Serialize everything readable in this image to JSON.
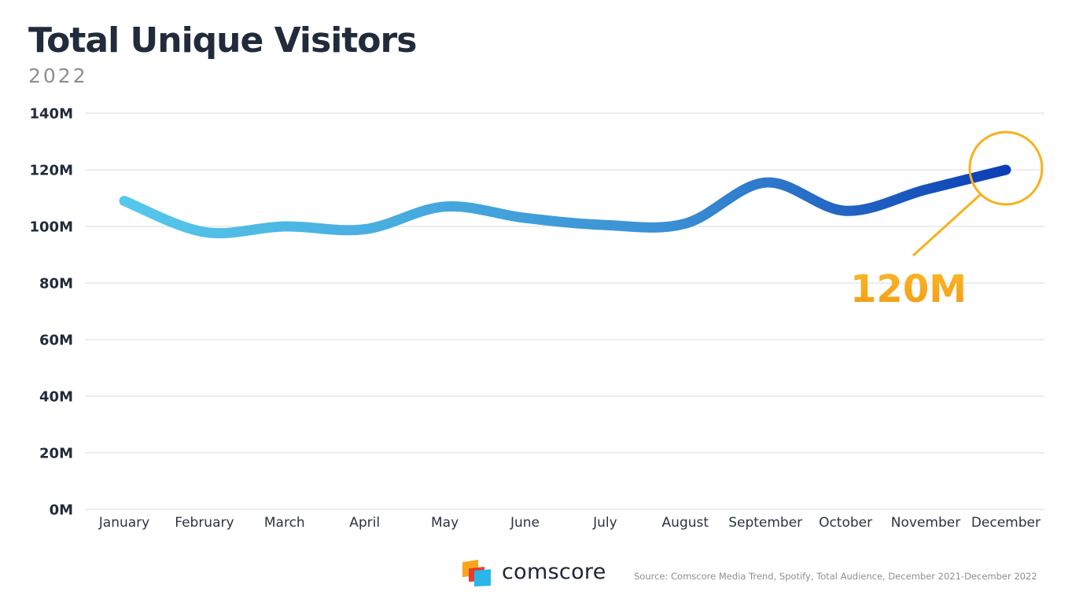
{
  "header": {
    "title": "Total Unique Visitors",
    "subtitle": "2022"
  },
  "chart_data": {
    "type": "line",
    "title": "Total Unique Visitors",
    "subtitle": "2022",
    "categories": [
      "January",
      "February",
      "March",
      "April",
      "May",
      "June",
      "July",
      "August",
      "September",
      "October",
      "November",
      "December"
    ],
    "series": [
      {
        "values": [
          109,
          98,
          100,
          99,
          107,
          103,
          100.5,
          101,
          115.5,
          105.5,
          113,
          120
        ]
      }
    ],
    "ylim": [
      0,
      140
    ],
    "yticks": [
      0,
      20,
      40,
      60,
      80,
      100,
      120,
      140
    ],
    "ytick_labels": [
      "0M",
      "20M",
      "40M",
      "60M",
      "80M",
      "100M",
      "120M",
      "140M"
    ],
    "grid": true,
    "line_gradient": [
      "#55c8ea",
      "#3a8fd4",
      "#0c3fb5"
    ],
    "annotation": {
      "label": "120M",
      "category": "December",
      "value": 120,
      "color": "#f7b11c"
    }
  },
  "footer": {
    "brand": "comscore",
    "source": "Source: Comscore Media Trend, Spotify, Total Audience, December 2021-December 2022",
    "logo_colors": [
      "#f9a51b",
      "#e63c2f",
      "#29b6e8"
    ]
  }
}
